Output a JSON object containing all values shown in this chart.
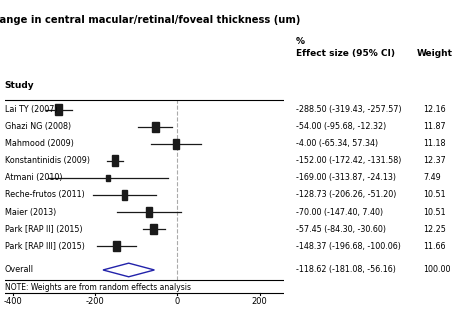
{
  "title": "Change in central macular/retinal/foveal thickness (um)",
  "studies": [
    {
      "name": "Lai TY (2007)",
      "effect": -288.5,
      "ci_low": -319.43,
      "ci_high": -257.57,
      "weight": 12.16,
      "weight_str": "12.16"
    },
    {
      "name": "Ghazi NG (2008)",
      "effect": -54.0,
      "ci_low": -95.68,
      "ci_high": -12.32,
      "weight": 11.87,
      "weight_str": "11.87"
    },
    {
      "name": "Mahmood (2009)",
      "effect": -4.0,
      "ci_low": -65.34,
      "ci_high": 57.34,
      "weight": 11.18,
      "weight_str": "11.18"
    },
    {
      "name": "Konstantinidis (2009)",
      "effect": -152.0,
      "ci_low": -172.42,
      "ci_high": -131.58,
      "weight": 12.37,
      "weight_str": "12.37"
    },
    {
      "name": "Atmani (2010)",
      "effect": -169.0,
      "ci_low": -313.87,
      "ci_high": -24.13,
      "weight": 7.49,
      "weight_str": "7.49"
    },
    {
      "name": "Reche-frutos (2011)",
      "effect": -128.73,
      "ci_low": -206.26,
      "ci_high": -51.2,
      "weight": 10.51,
      "weight_str": "10.51"
    },
    {
      "name": "Maier (2013)",
      "effect": -70.0,
      "ci_low": -147.4,
      "ci_high": 7.4,
      "weight": 10.51,
      "weight_str": "10.51"
    },
    {
      "name": "Park [RAP II] (2015)",
      "effect": -57.45,
      "ci_low": -84.3,
      "ci_high": -30.6,
      "weight": 12.25,
      "weight_str": "12.25"
    },
    {
      "name": "Park [RAP III] (2015)",
      "effect": -148.37,
      "ci_low": -196.68,
      "ci_high": -100.06,
      "weight": 11.66,
      "weight_str": "11.66"
    }
  ],
  "overall": {
    "name": "Overall",
    "effect": -118.62,
    "ci_low": -181.08,
    "ci_high": -56.16,
    "weight": 100.0,
    "weight_str": "100.00"
  },
  "effect_labels": [
    "-288.50 (-319.43, -257.57)",
    "-54.00 (-95.68, -12.32)",
    "-4.00 (-65.34, 57.34)",
    "-152.00 (-172.42, -131.58)",
    "-169.00 (-313.87, -24.13)",
    "-128.73 (-206.26, -51.20)",
    "-70.00 (-147.40, 7.40)",
    "-57.45 (-84.30, -30.60)",
    "-148.37 (-196.68, -100.06)"
  ],
  "overall_label": "-118.62 (-181.08, -56.16)",
  "xlim": [
    -420,
    260
  ],
  "xticks": [
    -400,
    -200,
    0,
    200
  ],
  "note": "NOTE: Weights are from random effects analysis",
  "bg_color": "#ffffff",
  "box_color": "#1a1a1a",
  "diamond_edge_color": "#2222aa",
  "line_color": "#1a1a1a",
  "dashed_color": "#aaaaaa",
  "header_col1": "Study",
  "header_col2": "Effect size (95% CI)",
  "header_col3": "Weight",
  "header_pct": "%",
  "max_weight": 12.37
}
